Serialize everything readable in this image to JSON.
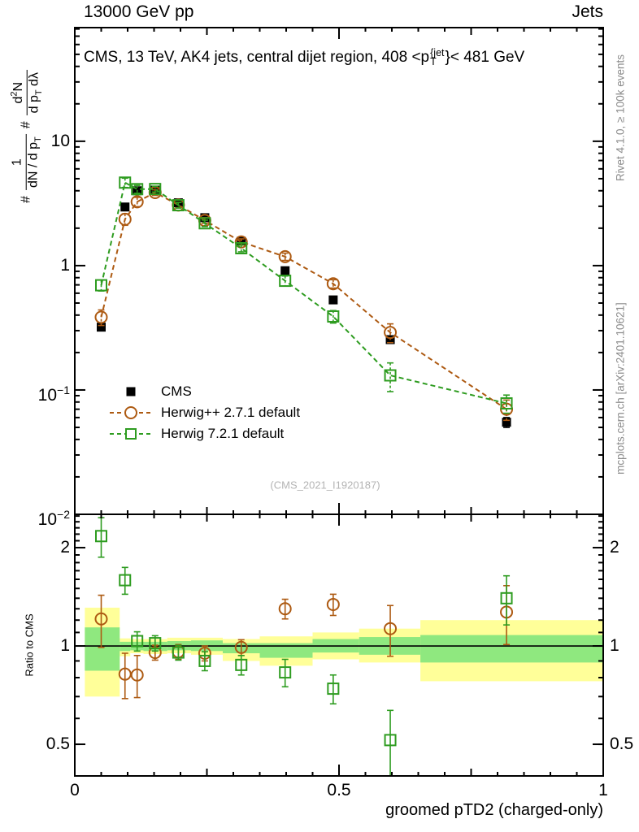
{
  "header": {
    "beam": "13000 GeV pp",
    "process": "Jets"
  },
  "title": {
    "prefix": "CMS, 13 TeV, AK4 jets, central dijet region, 408 <p",
    "sup": "{jet",
    "sub": "T",
    "suffix": "}< 481 GeV"
  },
  "ylabel": {
    "hash1": "#",
    "frac1_num": "1",
    "frac1_den": "dN / d p",
    "frac1_den_sub": "T",
    "hash2": "#",
    "frac2_num_a": "d",
    "frac2_num_sup": "2",
    "frac2_num_b": "N",
    "frac2_den": "d p",
    "frac2_den_sub": "T",
    "frac2_den_b": " dλ"
  },
  "side_labels": {
    "rivet": "Rivet 4.1.0, ≥ 100k events",
    "mcplots": "mcplots.cern.ch [arXiv:2401.10621]"
  },
  "watermark": "(CMS_2021_I1920187)",
  "legend": {
    "items": [
      {
        "label": "CMS",
        "marker": "filled-square",
        "color": "#000000"
      },
      {
        "label": "Herwig++ 2.7.1 default",
        "marker": "open-circle",
        "color": "#ad5a12"
      },
      {
        "label": "Herwig 7.2.1 default",
        "marker": "open-square",
        "color": "#2e9c20"
      }
    ]
  },
  "xaxis_label": "groomed pTD2 (charged-only)",
  "ratio_label": "Ratio to CMS",
  "colors": {
    "herwigpp": "#ad5a12",
    "herwig7": "#2e9c20",
    "band_yellow": "#ffff99",
    "band_green": "#8fe87f",
    "frame": "#000000",
    "gray_text": "#8c8c8c"
  },
  "chart_data": {
    "type": "line",
    "xlabel": "groomed pTD2 (charged-only)",
    "xlim": [
      0,
      1
    ],
    "ylim": [
      0.01,
      82
    ],
    "x_ticks": [
      {
        "v": 0,
        "label": "0"
      },
      {
        "v": 0.5,
        "label": "0.5"
      },
      {
        "v": 1,
        "label": "1"
      }
    ],
    "y_ticks": [
      {
        "v": 10,
        "base": "10",
        "exp": ""
      },
      {
        "v": 1,
        "base": "1",
        "exp": ""
      },
      {
        "v": 0.1,
        "base": "10",
        "exp": "−1"
      },
      {
        "v": 0.01,
        "base": "10",
        "exp": "−2"
      }
    ],
    "x": [
      0.05,
      0.095,
      0.118,
      0.152,
      0.196,
      0.246,
      0.315,
      0.398,
      0.489,
      0.597,
      0.817
    ],
    "series": [
      {
        "name": "CMS",
        "marker": "filled-square",
        "color": "#000000",
        "line": "none",
        "y": [
          0.32,
          2.96,
          4.0,
          4.05,
          3.2,
          2.43,
          1.57,
          0.91,
          0.53,
          0.254,
          0.055
        ],
        "yerr": [
          0.02,
          0.1,
          0.12,
          0.12,
          0.1,
          0.08,
          0.05,
          0.04,
          0.03,
          0.015,
          0.005
        ]
      },
      {
        "name": "Herwig++ 2.7.1 default",
        "marker": "open-circle",
        "color": "#ad5a12",
        "line": "dashed",
        "y": [
          0.385,
          2.36,
          3.26,
          3.87,
          3.07,
          2.31,
          1.55,
          1.18,
          0.715,
          0.29,
          0.07
        ],
        "yerr": [
          0.055,
          0.25,
          0.28,
          0.2,
          0.15,
          0.12,
          0.09,
          0.08,
          0.055,
          0.05,
          0.013
        ]
      },
      {
        "name": "Herwig 7.2.1 default",
        "marker": "open-square",
        "color": "#2e9c20",
        "line": "dashed",
        "y": [
          0.695,
          4.65,
          4.12,
          4.13,
          3.06,
          2.19,
          1.38,
          0.755,
          0.39,
          0.131,
          0.078
        ],
        "yerr": [
          0.07,
          0.4,
          0.3,
          0.22,
          0.16,
          0.13,
          0.09,
          0.07,
          0.045,
          0.034,
          0.013
        ]
      }
    ],
    "ratio": {
      "label": "Ratio to CMS",
      "ylim": [
        0.4,
        2.53
      ],
      "ticks": [
        {
          "v": 2,
          "label": "2"
        },
        {
          "v": 1,
          "label": "1"
        },
        {
          "v": 0.5,
          "label": "0.5"
        }
      ],
      "series": [
        {
          "name": "Herwig++ 2.7.1 default",
          "color": "#ad5a12",
          "marker": "open-circle",
          "y": [
            1.21,
            0.82,
            0.815,
            0.955,
            0.96,
            0.95,
            0.99,
            1.3,
            1.34,
            1.13,
            1.27
          ],
          "yerr": [
            0.22,
            0.13,
            0.12,
            0.05,
            0.05,
            0.05,
            0.055,
            0.09,
            0.1,
            0.2,
            0.26
          ]
        },
        {
          "name": "Herwig 7.2.1 default",
          "color": "#2e9c20",
          "marker": "open-square",
          "y": [
            2.17,
            1.59,
            1.035,
            1.02,
            0.955,
            0.9,
            0.875,
            0.83,
            0.74,
            0.515,
            1.4
          ],
          "yerr": [
            0.3,
            0.15,
            0.07,
            0.055,
            0.05,
            0.06,
            0.06,
            0.08,
            0.075,
            0.12,
            0.24
          ]
        }
      ],
      "bands": [
        {
          "x0": 0.019,
          "x1": 0.085,
          "yellow": [
            0.7,
            1.31
          ],
          "green": [
            0.84,
            1.14
          ]
        },
        {
          "x0": 0.085,
          "x1": 0.105,
          "yellow": [
            0.93,
            1.055
          ],
          "green": [
            0.965,
            1.03
          ]
        },
        {
          "x0": 0.105,
          "x1": 0.13,
          "yellow": [
            0.95,
            1.05
          ],
          "green": [
            0.97,
            1.03
          ]
        },
        {
          "x0": 0.13,
          "x1": 0.175,
          "yellow": [
            0.945,
            1.05
          ],
          "green": [
            0.965,
            1.03
          ]
        },
        {
          "x0": 0.175,
          "x1": 0.22,
          "yellow": [
            0.95,
            1.06
          ],
          "green": [
            0.97,
            1.035
          ]
        },
        {
          "x0": 0.22,
          "x1": 0.28,
          "yellow": [
            0.94,
            1.06
          ],
          "green": [
            0.965,
            1.04
          ]
        },
        {
          "x0": 0.28,
          "x1": 0.35,
          "yellow": [
            0.9,
            1.05
          ],
          "green": [
            0.95,
            1.02
          ]
        },
        {
          "x0": 0.35,
          "x1": 0.45,
          "yellow": [
            0.87,
            1.07
          ],
          "green": [
            0.92,
            1.02
          ]
        },
        {
          "x0": 0.45,
          "x1": 0.538,
          "yellow": [
            0.91,
            1.1
          ],
          "green": [
            0.955,
            1.05
          ]
        },
        {
          "x0": 0.538,
          "x1": 0.654,
          "yellow": [
            0.89,
            1.13
          ],
          "green": [
            0.94,
            1.065
          ]
        },
        {
          "x0": 0.654,
          "x1": 1.0,
          "yellow": [
            0.78,
            1.2
          ],
          "green": [
            0.89,
            1.08
          ]
        }
      ]
    }
  }
}
